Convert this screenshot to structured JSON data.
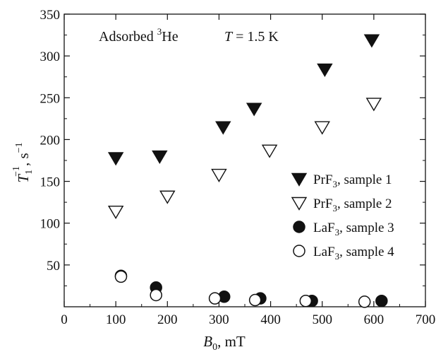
{
  "chart_data": {
    "type": "scatter",
    "title": "",
    "annotation": {
      "prefix": "Adsorbed ",
      "superscript": "3",
      "species": "He",
      "temp_var": "T",
      "temp_value": " = 1.5 K"
    },
    "xlabel": {
      "main": "B",
      "sub": "0",
      "rest": ", mT"
    },
    "ylabel": {
      "main": "T",
      "sub": "1",
      "sup": "−1",
      "rest": ", s",
      "rest_sup": "−1"
    },
    "xlim": [
      0,
      700
    ],
    "ylim": [
      0,
      350
    ],
    "xticks": [
      0,
      100,
      200,
      300,
      400,
      500,
      600,
      700
    ],
    "yticks": [
      50,
      100,
      150,
      200,
      250,
      300,
      350
    ],
    "legend_position": "right",
    "series": [
      {
        "compound": "PrF",
        "sub": "3",
        "suffix": ", sample 1",
        "marker": "filled-triangle-down",
        "x": [
          100,
          185,
          308,
          368,
          505,
          596
        ],
        "y": [
          178,
          180,
          215,
          237,
          284,
          319
        ]
      },
      {
        "compound": "PrF",
        "sub": "3",
        "suffix": ", sample 2",
        "marker": "open-triangle-down",
        "x": [
          100,
          200,
          300,
          398,
          500,
          600
        ],
        "y": [
          114,
          132,
          158,
          187,
          215,
          243
        ]
      },
      {
        "compound": "LaF",
        "sub": "3",
        "suffix": ", sample 3",
        "marker": "filled-circle",
        "x": [
          110,
          178,
          310,
          380,
          480,
          615
        ],
        "y": [
          37,
          23,
          12,
          10,
          7,
          7
        ]
      },
      {
        "compound": "LaF",
        "sub": "3",
        "suffix": ", sample 4",
        "marker": "open-circle",
        "x": [
          110,
          178,
          292,
          370,
          468,
          582
        ],
        "y": [
          36,
          14,
          10,
          8,
          7,
          6
        ]
      }
    ]
  }
}
